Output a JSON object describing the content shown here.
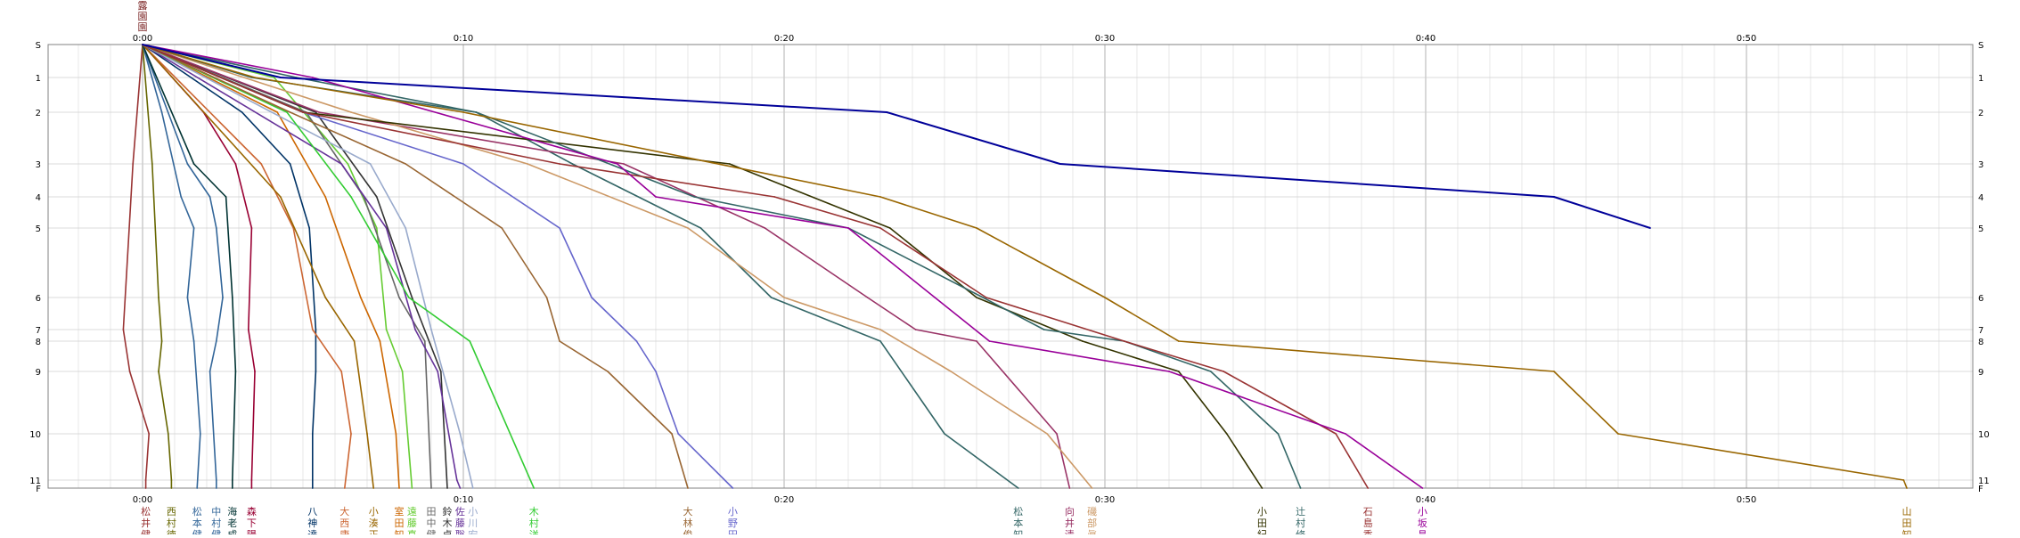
{
  "chart_data": {
    "type": "line",
    "title": "",
    "xlabel": "",
    "ylabel": "",
    "x_unit": "minutes (m:ss)",
    "xlim": [
      -0.25,
      59.5
    ],
    "x_ticks": [
      {
        "value": 0,
        "label": "0:00"
      },
      {
        "value": 10,
        "label": "0:10"
      },
      {
        "value": 20,
        "label": "0:20"
      },
      {
        "value": 30,
        "label": "0:30"
      },
      {
        "value": 40,
        "label": "0:40"
      },
      {
        "value": 50,
        "label": "0:50"
      }
    ],
    "y_ticks": [
      {
        "key": "S",
        "label": "S"
      },
      {
        "key": "1",
        "label": "1"
      },
      {
        "key": "2",
        "label": "2"
      },
      {
        "key": "3",
        "label": "3"
      },
      {
        "key": "4",
        "label": "4"
      },
      {
        "key": "5",
        "label": "5"
      },
      {
        "key": "6",
        "label": "6"
      },
      {
        "key": "7",
        "label": "7"
      },
      {
        "key": "8",
        "label": "8"
      },
      {
        "key": "9",
        "label": "9"
      },
      {
        "key": "10",
        "label": "10"
      },
      {
        "key": "11",
        "label": "11"
      },
      {
        "key": "F",
        "label": "F"
      }
    ],
    "y_note": "control points S, 1–11, F; spacing proportional to leg length",
    "grid": true,
    "top_label": "露園園",
    "series": [
      {
        "name": "松井健",
        "color": "#993333",
        "points": [
          [
            0,
            "S"
          ],
          [
            -0.3,
            "3"
          ],
          [
            -0.6,
            "7"
          ],
          [
            -0.4,
            "9"
          ],
          [
            0.2,
            "10"
          ],
          [
            0.1,
            "11"
          ],
          [
            0.1,
            "F"
          ]
        ]
      },
      {
        "name": "西村徳",
        "color": "#666600",
        "points": [
          [
            0,
            "S"
          ],
          [
            0.3,
            "3"
          ],
          [
            0.5,
            "6"
          ],
          [
            0.6,
            "8"
          ],
          [
            0.5,
            "9"
          ],
          [
            0.8,
            "10"
          ],
          [
            0.9,
            "11"
          ],
          [
            0.9,
            "F"
          ]
        ]
      },
      {
        "name": "松本健",
        "color": "#336699",
        "points": [
          [
            0,
            "S"
          ],
          [
            0.6,
            "2"
          ],
          [
            1.2,
            "4"
          ],
          [
            1.6,
            "5"
          ],
          [
            1.4,
            "6"
          ],
          [
            1.6,
            "8"
          ],
          [
            1.8,
            "10"
          ],
          [
            1.7,
            "F"
          ]
        ]
      },
      {
        "name": "中村健",
        "color": "#336699",
        "points": [
          [
            0,
            "S"
          ],
          [
            1.4,
            "3"
          ],
          [
            2.1,
            "4"
          ],
          [
            2.3,
            "5"
          ],
          [
            2.5,
            "6"
          ],
          [
            2.3,
            "8"
          ],
          [
            2.1,
            "9"
          ],
          [
            2.3,
            "11"
          ],
          [
            2.3,
            "F"
          ]
        ]
      },
      {
        "name": "海老成",
        "color": "#003333",
        "points": [
          [
            0,
            "S"
          ],
          [
            1.6,
            "3"
          ],
          [
            2.6,
            "4"
          ],
          [
            2.8,
            "6"
          ],
          [
            2.9,
            "9"
          ],
          [
            2.8,
            "11"
          ],
          [
            2.8,
            "F"
          ]
        ]
      },
      {
        "name": "森下陽",
        "color": "#990033",
        "points": [
          [
            0,
            "S"
          ],
          [
            1.9,
            "2"
          ],
          [
            2.9,
            "3"
          ],
          [
            3.4,
            "5"
          ],
          [
            3.3,
            "7"
          ],
          [
            3.5,
            "9"
          ],
          [
            3.4,
            "11"
          ],
          [
            3.4,
            "F"
          ]
        ]
      },
      {
        "name": "八神達",
        "color": "#003366",
        "points": [
          [
            0,
            "S"
          ],
          [
            3.1,
            "2"
          ],
          [
            4.6,
            "3"
          ],
          [
            5.2,
            "5"
          ],
          [
            5.4,
            "7"
          ],
          [
            5.4,
            "9"
          ],
          [
            5.3,
            "10"
          ],
          [
            5.3,
            "F"
          ]
        ]
      },
      {
        "name": "大西康",
        "color": "#cc6633",
        "points": [
          [
            0,
            "S"
          ],
          [
            3.7,
            "3"
          ],
          [
            4.7,
            "5"
          ],
          [
            5.3,
            "7"
          ],
          [
            6.2,
            "9"
          ],
          [
            6.5,
            "10"
          ],
          [
            6.3,
            "F"
          ]
        ]
      },
      {
        "name": "小湊正",
        "color": "#996600",
        "points": [
          [
            0,
            "S"
          ],
          [
            4.3,
            "4"
          ],
          [
            5.7,
            "6"
          ],
          [
            6.6,
            "8"
          ],
          [
            7.0,
            "10"
          ],
          [
            7.2,
            "F"
          ]
        ]
      },
      {
        "name": "室田知",
        "color": "#cc6600",
        "points": [
          [
            0,
            "S"
          ],
          [
            4.2,
            "2"
          ],
          [
            5.7,
            "4"
          ],
          [
            6.8,
            "6"
          ],
          [
            7.4,
            "8"
          ],
          [
            7.9,
            "10"
          ],
          [
            8.0,
            "F"
          ]
        ]
      },
      {
        "name": "遠藤真",
        "color": "#66cc33",
        "points": [
          [
            0,
            "S"
          ],
          [
            4.1,
            "1"
          ],
          [
            6.4,
            "3"
          ],
          [
            7.3,
            "5"
          ],
          [
            7.6,
            "7"
          ],
          [
            8.1,
            "9"
          ],
          [
            8.4,
            "F"
          ]
        ]
      },
      {
        "name": "田中健",
        "color": "#666666",
        "points": [
          [
            0,
            "S"
          ],
          [
            5.1,
            "2"
          ],
          [
            6.9,
            "4"
          ],
          [
            8.0,
            "6"
          ],
          [
            8.8,
            "8"
          ],
          [
            9.0,
            "F"
          ]
        ]
      },
      {
        "name": "鈴木卓",
        "color": "#333333",
        "points": [
          [
            0,
            "S"
          ],
          [
            5.4,
            "2"
          ],
          [
            7.3,
            "4"
          ],
          [
            8.4,
            "6"
          ],
          [
            9.3,
            "9"
          ],
          [
            9.5,
            "F"
          ]
        ]
      },
      {
        "name": "佐藤聡",
        "color": "#663399",
        "points": [
          [
            0,
            "S"
          ],
          [
            6.2,
            "3"
          ],
          [
            7.6,
            "5"
          ],
          [
            8.5,
            "7"
          ],
          [
            9.2,
            "9"
          ],
          [
            9.8,
            "11"
          ],
          [
            9.9,
            "F"
          ]
        ]
      },
      {
        "name": "小川宏",
        "color": "#99aacc",
        "points": [
          [
            0,
            "S"
          ],
          [
            7.1,
            "3"
          ],
          [
            8.2,
            "5"
          ],
          [
            9.0,
            "7"
          ],
          [
            9.9,
            "10"
          ],
          [
            10.3,
            "F"
          ]
        ]
      },
      {
        "name": "木村洋",
        "color": "#33cc33",
        "points": [
          [
            0,
            "S"
          ],
          [
            4.5,
            "2"
          ],
          [
            6.5,
            "4"
          ],
          [
            8.3,
            "6"
          ],
          [
            10.2,
            "8"
          ],
          [
            12.2,
            "F"
          ]
        ]
      },
      {
        "name": "大林俊",
        "color": "#996633",
        "points": [
          [
            0,
            "S"
          ],
          [
            4.6,
            "2"
          ],
          [
            8.2,
            "3"
          ],
          [
            11.2,
            "5"
          ],
          [
            12.6,
            "6"
          ],
          [
            13.0,
            "8"
          ],
          [
            14.5,
            "9"
          ],
          [
            16.5,
            "10"
          ],
          [
            17.0,
            "F"
          ]
        ]
      },
      {
        "name": "小野田",
        "color": "#6666cc",
        "points": [
          [
            0,
            "S"
          ],
          [
            5.0,
            "2"
          ],
          [
            10.0,
            "3"
          ],
          [
            13.0,
            "5"
          ],
          [
            14.0,
            "6"
          ],
          [
            15.4,
            "8"
          ],
          [
            16.0,
            "9"
          ],
          [
            16.7,
            "10"
          ],
          [
            18.4,
            "F"
          ]
        ]
      },
      {
        "name": "松本知",
        "color": "#336666",
        "points": [
          [
            0,
            "S"
          ],
          [
            4.8,
            "1"
          ],
          [
            10.4,
            "2"
          ],
          [
            13.4,
            "3"
          ],
          [
            17.4,
            "5"
          ],
          [
            19.6,
            "6"
          ],
          [
            23.0,
            "8"
          ],
          [
            25.0,
            "10"
          ],
          [
            27.3,
            "F"
          ]
        ]
      },
      {
        "name": "向井清",
        "color": "#993366",
        "points": [
          [
            0,
            "S"
          ],
          [
            5.5,
            "2"
          ],
          [
            15.0,
            "3"
          ],
          [
            19.4,
            "5"
          ],
          [
            22.6,
            "6"
          ],
          [
            24.1,
            "7"
          ],
          [
            26.0,
            "8"
          ],
          [
            28.5,
            "10"
          ],
          [
            28.9,
            "F"
          ]
        ]
      },
      {
        "name": "磯部眞",
        "color": "#cc9966",
        "points": [
          [
            0,
            "S"
          ],
          [
            6.5,
            "2"
          ],
          [
            12.0,
            "3"
          ],
          [
            17.0,
            "5"
          ],
          [
            20.0,
            "6"
          ],
          [
            23.0,
            "7"
          ],
          [
            25.2,
            "9"
          ],
          [
            28.2,
            "10"
          ],
          [
            29.6,
            "F"
          ]
        ]
      },
      {
        "name": "小田紀",
        "color": "#333300",
        "points": [
          [
            0,
            "S"
          ],
          [
            5.0,
            "2"
          ],
          [
            18.3,
            "3"
          ],
          [
            23.3,
            "5"
          ],
          [
            26.0,
            "6"
          ],
          [
            29.3,
            "8"
          ],
          [
            32.3,
            "9"
          ],
          [
            33.8,
            "10"
          ],
          [
            34.9,
            "F"
          ]
        ]
      },
      {
        "name": "辻村修",
        "color": "#336666",
        "points": [
          [
            0,
            "S"
          ],
          [
            3.4,
            "1"
          ],
          [
            10.4,
            "2"
          ],
          [
            17.2,
            "4"
          ],
          [
            22.0,
            "5"
          ],
          [
            26.2,
            "6"
          ],
          [
            28.1,
            "7"
          ],
          [
            30.6,
            "8"
          ],
          [
            33.3,
            "9"
          ],
          [
            35.4,
            "10"
          ],
          [
            36.1,
            "F"
          ]
        ]
      },
      {
        "name": "石島秀",
        "color": "#993333",
        "points": [
          [
            0,
            "S"
          ],
          [
            5.0,
            "2"
          ],
          [
            13.0,
            "3"
          ],
          [
            19.7,
            "4"
          ],
          [
            23.0,
            "5"
          ],
          [
            26.3,
            "6"
          ],
          [
            30.6,
            "8"
          ],
          [
            33.7,
            "9"
          ],
          [
            37.2,
            "10"
          ],
          [
            38.2,
            "F"
          ]
        ]
      },
      {
        "name": "小坂昌",
        "color": "#990099",
        "points": [
          [
            0,
            "S"
          ],
          [
            5.3,
            "1"
          ],
          [
            14.8,
            "3"
          ],
          [
            16.0,
            "4"
          ],
          [
            22.0,
            "5"
          ],
          [
            24.7,
            "6"
          ],
          [
            26.4,
            "8"
          ],
          [
            32.0,
            "9"
          ],
          [
            37.5,
            "10"
          ],
          [
            39.9,
            "F"
          ]
        ]
      },
      {
        "name": "山田知",
        "color": "#996600",
        "points": [
          [
            0,
            "S"
          ],
          [
            3.5,
            "1"
          ],
          [
            10.0,
            "2"
          ],
          [
            23.0,
            "4"
          ],
          [
            26.0,
            "5"
          ],
          [
            30.0,
            "6"
          ],
          [
            32.3,
            "8"
          ],
          [
            44.0,
            "9"
          ],
          [
            46.0,
            "10"
          ],
          [
            54.9,
            "11"
          ],
          [
            55.0,
            "F"
          ]
        ]
      },
      {
        "name": "",
        "color": "#000099",
        "points": [
          [
            0,
            "S"
          ],
          [
            4.3,
            "1"
          ],
          [
            23.2,
            "2"
          ],
          [
            28.6,
            "3"
          ],
          [
            44.0,
            "4"
          ],
          [
            47.0,
            "5"
          ]
        ]
      }
    ]
  }
}
